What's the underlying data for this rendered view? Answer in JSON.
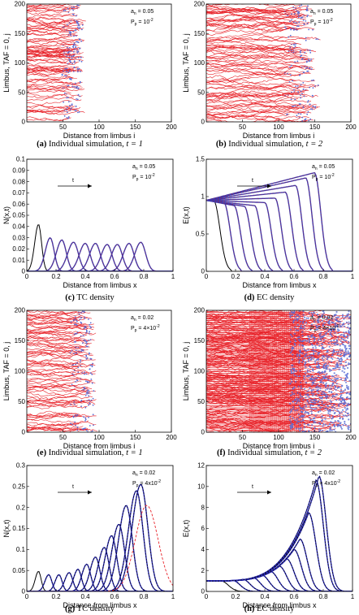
{
  "chart_data": [
    {
      "panel": "a",
      "type": "scatter",
      "caption_letter": "(a)",
      "caption_text": "Individual simulation,",
      "caption_math": "t = 1",
      "xlabel": "Distance from limbus i",
      "ylabel": "Limbus, TAF = 0, j",
      "xlim": [
        0,
        200
      ],
      "ylim": [
        0,
        200
      ],
      "xticks": [
        50,
        100,
        150,
        200
      ],
      "yticks": [
        0,
        50,
        100,
        150,
        200
      ],
      "params": [
        "a_n = 0.05",
        "P_p = 10^-2"
      ],
      "params_display": [
        "a",
        "n",
        " = 0.05",
        "P",
        "p",
        " = 10",
        "-2"
      ],
      "front": 75,
      "fill": "sprouts",
      "colors": {
        "sprout": "#e8232a",
        "tip": "#5b6fd6"
      }
    },
    {
      "panel": "b",
      "type": "scatter",
      "caption_letter": "(b)",
      "caption_text": "Individual simulation,",
      "caption_math": "t = 2",
      "xlabel": "Distance from limbus i",
      "ylabel": "Limbus, TAF = 0, j",
      "xlim": [
        0,
        200
      ],
      "ylim": [
        0,
        200
      ],
      "xticks": [
        50,
        100,
        150,
        200
      ],
      "yticks": [
        0,
        50,
        100,
        150,
        200
      ],
      "params": [
        "a_n = 0.05",
        "P_p = 10^-2"
      ],
      "params_display": [
        "a",
        "n",
        " = 0.05",
        "P",
        "p",
        " = 10",
        "-2"
      ],
      "front": 150,
      "fill": "sprouts",
      "colors": {
        "sprout": "#e8232a",
        "tip": "#5b6fd6"
      }
    },
    {
      "panel": "c",
      "type": "line",
      "caption_letter": "(c)",
      "caption_text": "TC density",
      "xlabel": "Distance from limbus x",
      "ylabel": "N(x,t)",
      "xlim": [
        0,
        1
      ],
      "ylim": [
        0,
        0.1
      ],
      "xticks": [
        0,
        0.2,
        0.4,
        0.6,
        0.8,
        1
      ],
      "xticklabels": [
        "0",
        "0.2",
        "0.4",
        "0.6",
        "0.8",
        "1"
      ],
      "yticks": [
        0,
        0.01,
        0.02,
        0.03,
        0.04,
        0.05,
        0.06,
        0.07,
        0.08,
        0.09,
        0.1
      ],
      "yticklabels": [
        "0",
        "0.01",
        "0.02",
        "0.03",
        "0.04",
        "0.05",
        "0.06",
        "0.07",
        "0.08",
        "0.09",
        "0.1"
      ],
      "params_display": [
        "a",
        "n",
        " = 0.05",
        "P",
        "p",
        " = 10",
        "-2"
      ],
      "arrow_label": "t",
      "curve_kind": "pulse",
      "series": [
        {
          "peak_x": 0.08,
          "peak_y": 0.042,
          "width": 0.035
        },
        {
          "peak_x": 0.16,
          "peak_y": 0.03,
          "width": 0.045
        },
        {
          "peak_x": 0.24,
          "peak_y": 0.028,
          "width": 0.05
        },
        {
          "peak_x": 0.32,
          "peak_y": 0.026,
          "width": 0.055
        },
        {
          "peak_x": 0.4,
          "peak_y": 0.025,
          "width": 0.055
        },
        {
          "peak_x": 0.47,
          "peak_y": 0.025,
          "width": 0.055
        },
        {
          "peak_x": 0.55,
          "peak_y": 0.024,
          "width": 0.055
        },
        {
          "peak_x": 0.62,
          "peak_y": 0.024,
          "width": 0.055
        },
        {
          "peak_x": 0.7,
          "peak_y": 0.025,
          "width": 0.055
        },
        {
          "peak_x": 0.78,
          "peak_y": 0.026,
          "width": 0.055
        }
      ],
      "colors": {
        "first": "#000000",
        "sim": "#3a3ab0",
        "model": "#7a2a6a"
      }
    },
    {
      "panel": "d",
      "type": "line",
      "caption_letter": "(d)",
      "caption_text": "EC density",
      "xlabel": "Distance from limbus x",
      "ylabel": "E(x,t)",
      "xlim": [
        0,
        1
      ],
      "ylim": [
        0,
        1.5
      ],
      "xticks": [
        0,
        0.2,
        0.4,
        0.6,
        0.8,
        1
      ],
      "xticklabels": [
        "0",
        "0.2",
        "0.4",
        "0.6",
        "0.8",
        "1"
      ],
      "yticks": [
        0,
        0.5,
        1,
        1.5
      ],
      "yticklabels": [
        "0",
        "0.5",
        "1",
        "1.5"
      ],
      "params_display": [
        "a",
        "n",
        " = 0.05",
        "P",
        "p",
        " = 10",
        "-2"
      ],
      "arrow_label": "t",
      "curve_kind": "front",
      "series": [
        {
          "front_x": 0.05,
          "bump_y": 0.95,
          "start_y": 0.95
        },
        {
          "front_x": 0.12,
          "bump_y": 0.92,
          "start_y": 0.95
        },
        {
          "front_x": 0.19,
          "bump_y": 0.88,
          "start_y": 0.95
        },
        {
          "front_x": 0.26,
          "bump_y": 0.87,
          "start_y": 0.95
        },
        {
          "front_x": 0.33,
          "bump_y": 0.88,
          "start_y": 0.95
        },
        {
          "front_x": 0.4,
          "bump_y": 0.92,
          "start_y": 0.95
        },
        {
          "front_x": 0.47,
          "bump_y": 0.98,
          "start_y": 0.95
        },
        {
          "front_x": 0.54,
          "bump_y": 1.06,
          "start_y": 0.95
        },
        {
          "front_x": 0.61,
          "bump_y": 1.15,
          "start_y": 0.95
        },
        {
          "front_x": 0.68,
          "bump_y": 1.25,
          "start_y": 0.95
        },
        {
          "front_x": 0.74,
          "bump_y": 1.32,
          "start_y": 0.95
        }
      ],
      "colors": {
        "first": "#000000",
        "sim": "#3a3ab0",
        "model": "#7a2a6a"
      }
    },
    {
      "panel": "e",
      "type": "scatter",
      "caption_letter": "(e)",
      "caption_text": "Individual simulation,",
      "caption_math": "t = 1",
      "xlabel": "Distance from limbus i",
      "ylabel": "Limbus, TAF = 0, j",
      "xlim": [
        0,
        200
      ],
      "ylim": [
        0,
        200
      ],
      "xticks": [
        50,
        100,
        150,
        200
      ],
      "yticks": [
        0,
        50,
        100,
        150,
        200
      ],
      "params_display": [
        "a",
        "n",
        " = 0.02",
        "P",
        "p",
        " = 4×10",
        "-2"
      ],
      "front": 90,
      "fill": "sprouts",
      "colors": {
        "sprout": "#e8232a",
        "tip": "#5b6fd6"
      }
    },
    {
      "panel": "f",
      "type": "scatter",
      "caption_letter": "(f)",
      "caption_text": "Individual simulation,",
      "caption_math": "t = 2",
      "xlabel": "Distance from limbus i",
      "ylabel": "Limbus, TAF = 0, j",
      "xlim": [
        0,
        200
      ],
      "ylim": [
        0,
        200
      ],
      "xticks": [
        50,
        100,
        150,
        200
      ],
      "yticks": [
        0,
        50,
        100,
        150,
        200
      ],
      "params_display": [
        "a",
        "n",
        " = 0.02",
        "P",
        "p",
        " = 4×10",
        "-2"
      ],
      "front": 195,
      "fill": "dense",
      "colors": {
        "sprout": "#e8232a",
        "tip": "#5b6fd6"
      }
    },
    {
      "panel": "g",
      "type": "line",
      "caption_letter": "(g)",
      "caption_text": "TC density",
      "xlabel": "Distance from limbus x",
      "ylabel": "N(x,t)",
      "xlim": [
        0,
        1
      ],
      "ylim": [
        0,
        0.3
      ],
      "xticks": [
        0,
        0.2,
        0.4,
        0.6,
        0.8,
        1
      ],
      "xticklabels": [
        "0",
        "0.2",
        "0.4",
        "0.6",
        "0.8",
        "1"
      ],
      "yticks": [
        0,
        0.05,
        0.1,
        0.15,
        0.2,
        0.25,
        0.3
      ],
      "yticklabels": [
        "0",
        "0.05",
        "0.1",
        "0.15",
        "0.2",
        "0.25",
        "0.3"
      ],
      "params_display": [
        "a",
        "n",
        " = 0.02",
        "P",
        "p",
        " = 4x10",
        "-2"
      ],
      "arrow_label": "t",
      "curve_kind": "pulse",
      "series": [
        {
          "peak_x": 0.08,
          "peak_y": 0.048,
          "width": 0.03
        },
        {
          "peak_x": 0.15,
          "peak_y": 0.04,
          "width": 0.035
        },
        {
          "peak_x": 0.22,
          "peak_y": 0.04,
          "width": 0.035
        },
        {
          "peak_x": 0.29,
          "peak_y": 0.045,
          "width": 0.04
        },
        {
          "peak_x": 0.35,
          "peak_y": 0.053,
          "width": 0.04
        },
        {
          "peak_x": 0.41,
          "peak_y": 0.065,
          "width": 0.045
        },
        {
          "peak_x": 0.47,
          "peak_y": 0.082,
          "width": 0.05
        },
        {
          "peak_x": 0.53,
          "peak_y": 0.105,
          "width": 0.055
        },
        {
          "peak_x": 0.58,
          "peak_y": 0.133,
          "width": 0.06
        },
        {
          "peak_x": 0.63,
          "peak_y": 0.16,
          "width": 0.065
        },
        {
          "peak_x": 0.68,
          "peak_y": 0.205,
          "width": 0.07
        },
        {
          "peak_x": 0.75,
          "peak_y": 0.24,
          "width": 0.075
        },
        {
          "peak_x": 0.78,
          "peak_y": 0.255,
          "width": 0.08
        }
      ],
      "dashed_red": {
        "peak_x": 0.82,
        "peak_y": 0.205,
        "width": 0.11
      },
      "colors": {
        "first": "#000000",
        "sim": "#2a2ab8",
        "model": "#000000",
        "red": "#e8232a"
      }
    },
    {
      "panel": "h",
      "type": "line",
      "caption_letter": "(h)",
      "caption_text": "EC density",
      "xlabel": "Distance from limbus x",
      "ylabel": "E(x,t)",
      "xlim": [
        0,
        1
      ],
      "ylim": [
        0,
        12
      ],
      "xticks": [
        0,
        0.2,
        0.4,
        0.6,
        0.8,
        1
      ],
      "xticklabels": [
        "0",
        "0.2",
        "0.4",
        "0.6",
        "0.8",
        "1"
      ],
      "yticks": [
        0,
        2,
        4,
        6,
        8,
        10,
        12
      ],
      "yticklabels": [
        "0",
        "2",
        "4",
        "6",
        "8",
        "10",
        "12"
      ],
      "params_display": [
        "a",
        "n",
        " = 0.02",
        "P",
        "p",
        " = 4x10",
        "-2"
      ],
      "arrow_label": "t",
      "curve_kind": "growfront",
      "series": [
        {
          "front_x": 0.1,
          "peak_y": 1.0
        },
        {
          "front_x": 0.18,
          "peak_y": 1.05
        },
        {
          "front_x": 0.25,
          "peak_y": 1.15
        },
        {
          "front_x": 0.32,
          "peak_y": 1.3
        },
        {
          "front_x": 0.38,
          "peak_y": 1.55
        },
        {
          "front_x": 0.44,
          "peak_y": 1.9
        },
        {
          "front_x": 0.5,
          "peak_y": 2.4
        },
        {
          "front_x": 0.55,
          "peak_y": 3.1
        },
        {
          "front_x": 0.6,
          "peak_y": 4.0
        },
        {
          "front_x": 0.64,
          "peak_y": 5.0
        },
        {
          "front_x": 0.7,
          "peak_y": 7.5
        },
        {
          "front_x": 0.75,
          "peak_y": 10.6
        },
        {
          "front_x": 0.77,
          "peak_y": 11.0
        }
      ],
      "colors": {
        "first": "#000000",
        "sim": "#2a2ab8",
        "model": "#000000",
        "red": "#e8232a"
      }
    }
  ]
}
